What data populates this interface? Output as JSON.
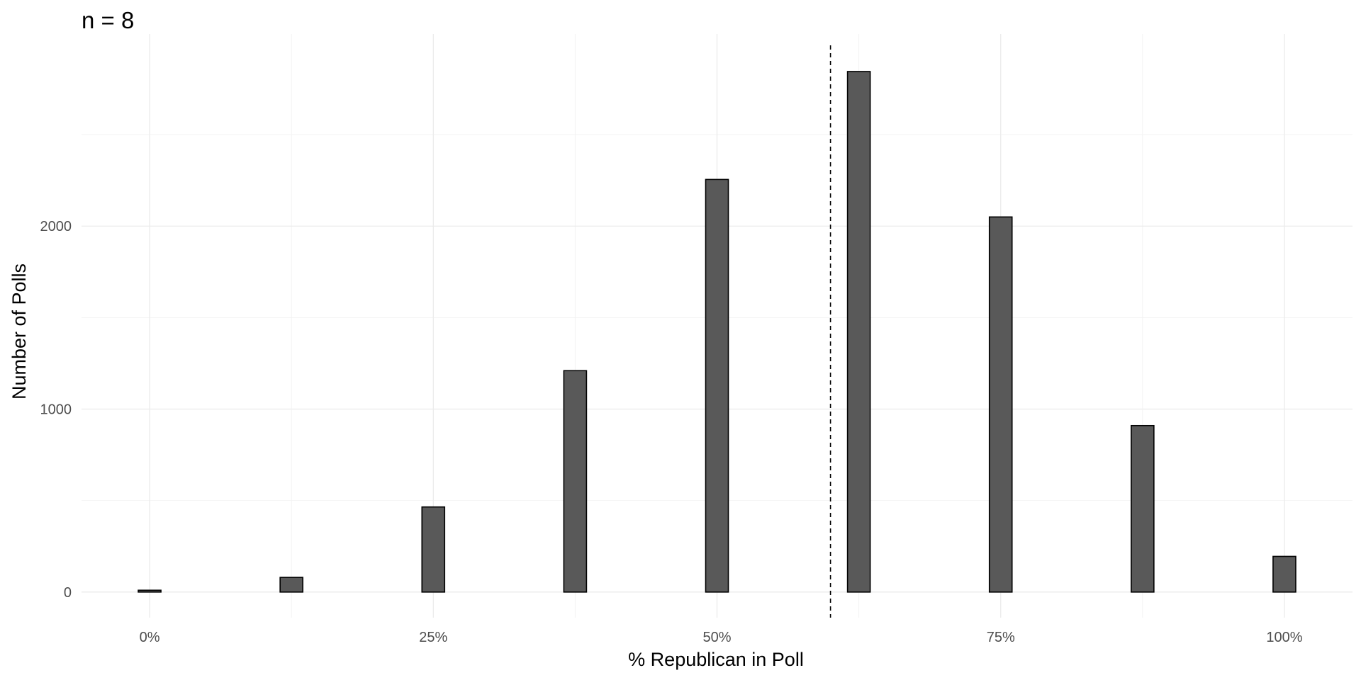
{
  "chart_data": {
    "type": "bar",
    "title": "n = 8",
    "xlabel": "% Republican in Poll",
    "ylabel": "Number of Polls",
    "x_tick_values": [
      0,
      25,
      50,
      75,
      100
    ],
    "x_tick_labels": [
      "0%",
      "25%",
      "50%",
      "75%",
      "100%"
    ],
    "y_tick_values": [
      0,
      1000,
      2000
    ],
    "y_tick_labels": [
      "0",
      "1000",
      "2000"
    ],
    "x": [
      0,
      12.5,
      25,
      37.5,
      50,
      62.5,
      75,
      87.5,
      100
    ],
    "values": [
      10,
      80,
      465,
      1210,
      2255,
      2845,
      2050,
      910,
      195
    ],
    "reference_line_x": 60,
    "xlim": [
      -6,
      106
    ],
    "ylim": [
      -140,
      3050
    ],
    "grid": true,
    "colors": {
      "bar_fill": "#595959",
      "bar_outline": "#000000",
      "grid": "#ebebeb",
      "background": "#ffffff"
    }
  }
}
